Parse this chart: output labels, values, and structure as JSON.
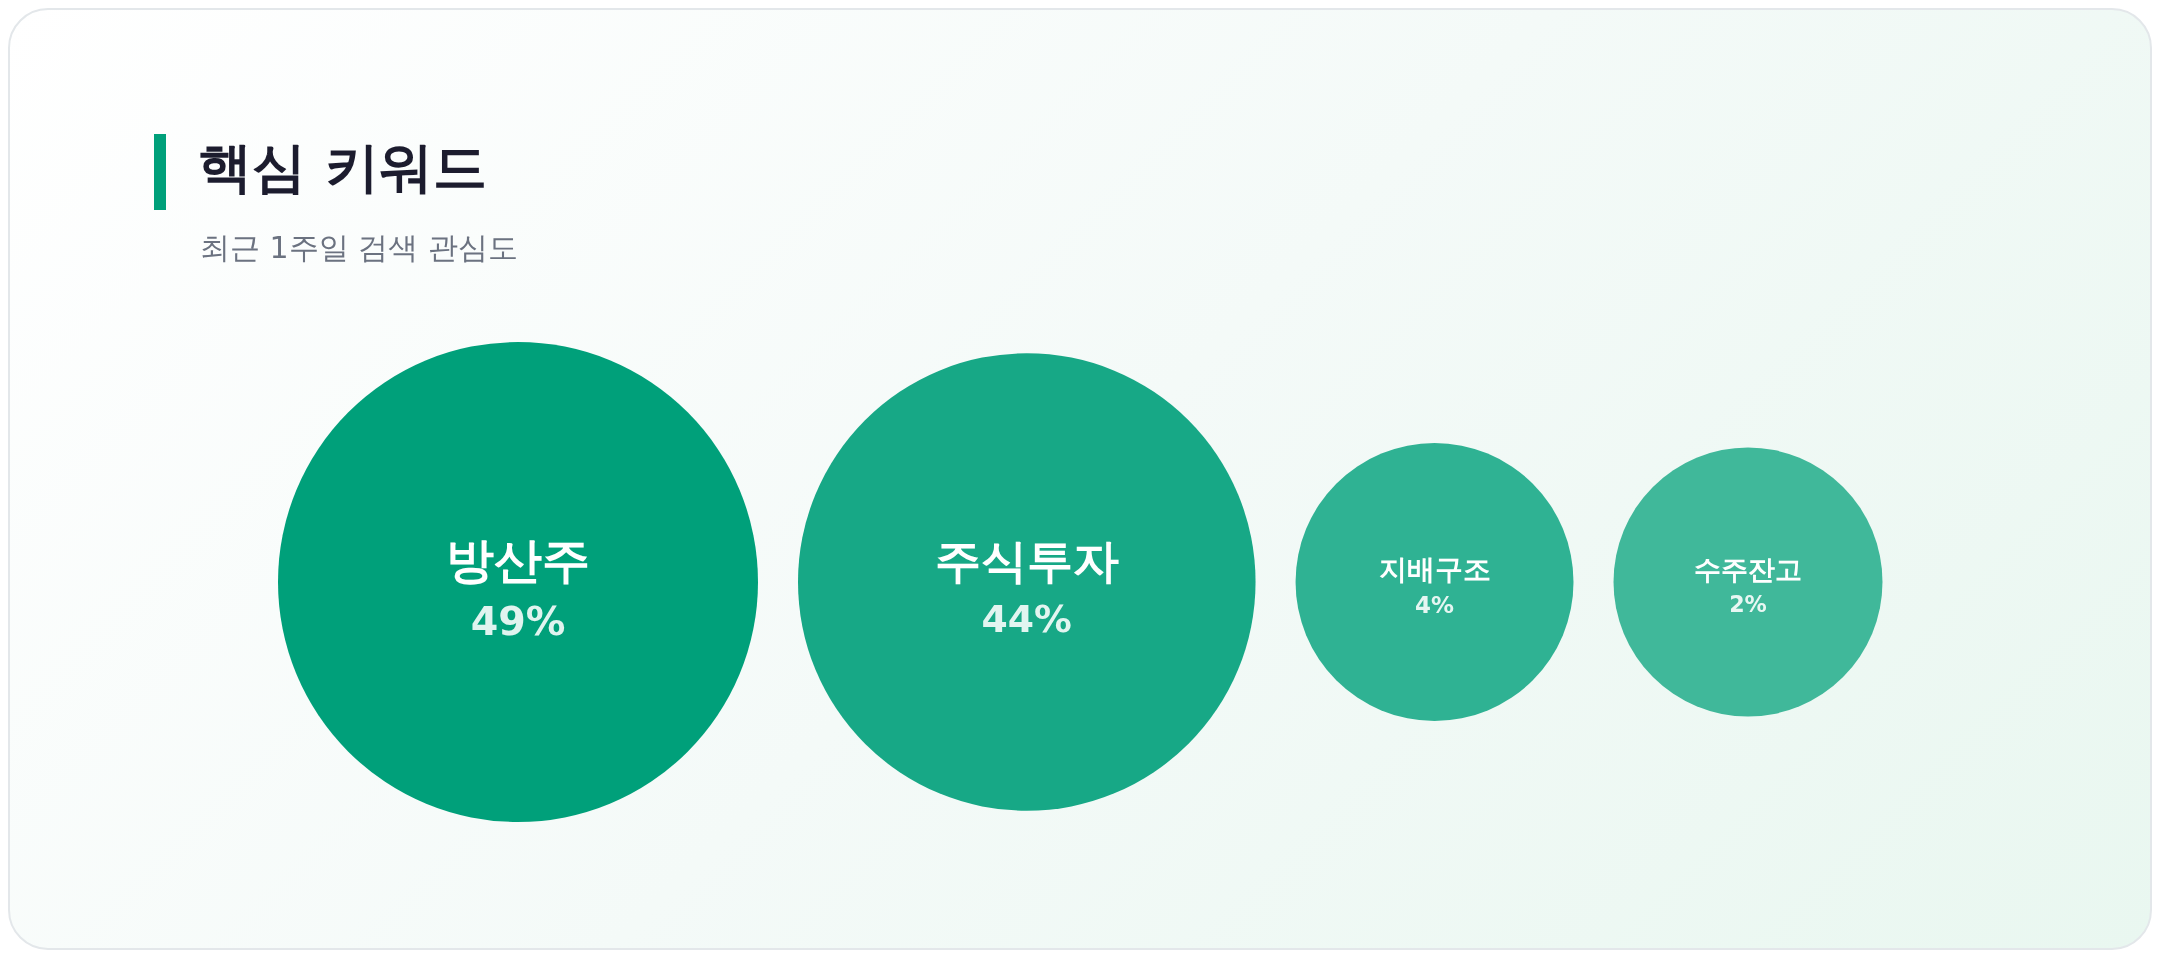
{
  "chart_data": {
    "type": "other",
    "title": "핵심 키워드",
    "subtitle": "최근 1주일 검색 관심도",
    "categories": [
      "방산주",
      "주식투자",
      "지배구조",
      "수주잔고"
    ],
    "values": [
      49,
      44,
      4,
      2
    ],
    "value_labels": [
      "49%",
      "44%",
      "4%",
      "2%"
    ],
    "colors": [
      "#00a07a",
      "#17a886",
      "#2fb293",
      "#40b89a"
    ]
  }
}
